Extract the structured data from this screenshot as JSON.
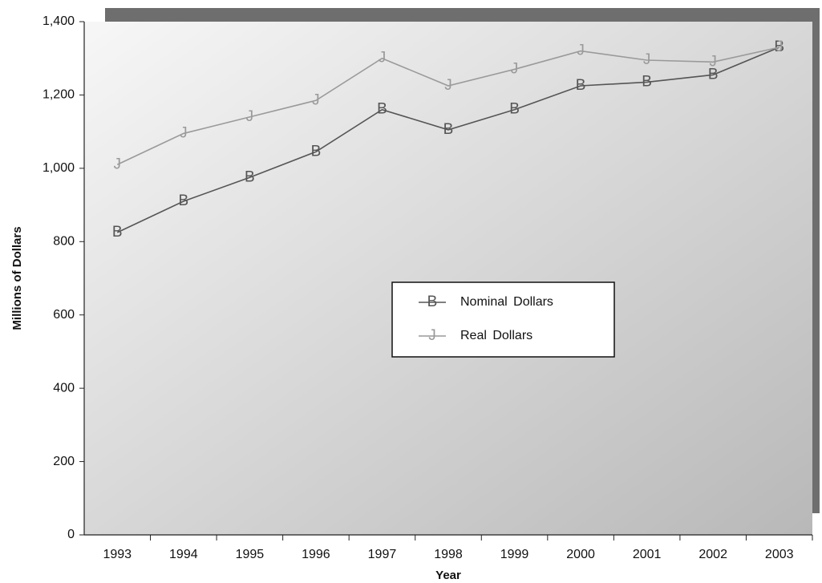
{
  "chart_data": {
    "type": "line",
    "x_label": "Year",
    "y_label": "Millions of Dollars",
    "categories": [
      "1993",
      "1994",
      "1995",
      "1996",
      "1997",
      "1998",
      "1999",
      "2000",
      "2001",
      "2002",
      "2003"
    ],
    "series": [
      {
        "name": "Nominal Dollars",
        "marker": "B",
        "color": "#555555",
        "values": [
          825,
          910,
          975,
          1045,
          1160,
          1105,
          1160,
          1225,
          1235,
          1255,
          1330
        ]
      },
      {
        "name": "Real Dollars",
        "marker": "J",
        "color": "#9a9a9a",
        "values": [
          1010,
          1095,
          1140,
          1185,
          1300,
          1225,
          1270,
          1320,
          1295,
          1290,
          1330
        ]
      }
    ],
    "ylim": [
      0,
      1400
    ],
    "yticks": [
      0,
      200,
      400,
      600,
      800,
      {
        "value": 1000,
        "label": "1,000"
      },
      {
        "value": 1200,
        "label": "1,200"
      },
      {
        "value": 1400,
        "label": "1,400"
      }
    ],
    "grid": false
  }
}
